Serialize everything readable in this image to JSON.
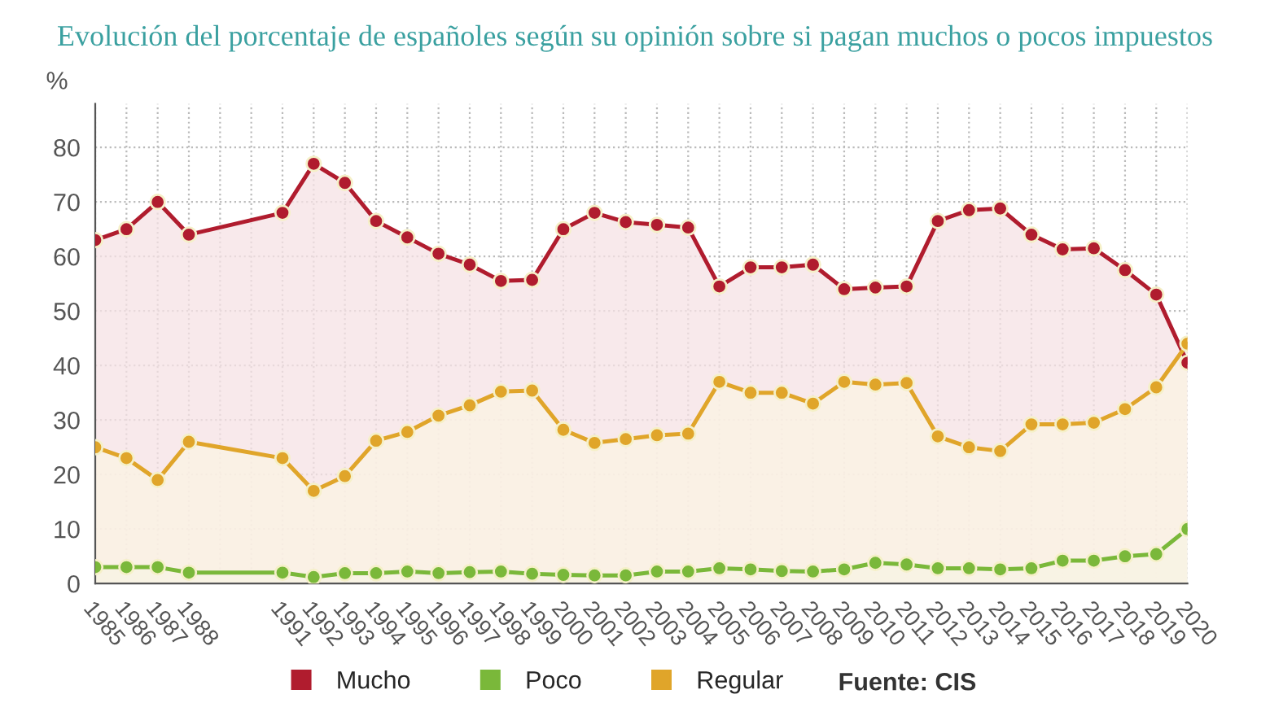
{
  "chart_data": {
    "type": "area",
    "title": "Evolución del porcentaje de españoles según su opinión sobre si pagan muchos o pocos impuestos",
    "ylabel": "%",
    "x": [
      1985,
      1986,
      1987,
      1988,
      1991,
      1992,
      1993,
      1994,
      1995,
      1996,
      1997,
      1998,
      1999,
      2000,
      2001,
      2002,
      2003,
      2004,
      2005,
      2006,
      2007,
      2008,
      2009,
      2010,
      2011,
      2012,
      2013,
      2014,
      2015,
      2016,
      2017,
      2018,
      2019,
      2020
    ],
    "series": [
      {
        "name": "Mucho",
        "color": "#b01c2e",
        "values": [
          63,
          65,
          70,
          64,
          68,
          77,
          73.5,
          66.5,
          63.5,
          60.5,
          58.5,
          55.5,
          55.7,
          65,
          68,
          66.3,
          65.8,
          65.3,
          54.5,
          58,
          58,
          58.5,
          54,
          54.3,
          54.5,
          66.5,
          68.5,
          68.8,
          64,
          61.3,
          61.5,
          57.5,
          53,
          40.5
        ]
      },
      {
        "name": "Poco",
        "color": "#7ab83a",
        "values": [
          3,
          3,
          3,
          2,
          2,
          1.2,
          1.9,
          1.9,
          2.2,
          1.9,
          2.1,
          2.2,
          1.8,
          1.6,
          1.5,
          1.5,
          2.2,
          2.2,
          2.8,
          2.6,
          2.3,
          2.2,
          2.6,
          3.8,
          3.5,
          2.8,
          2.8,
          2.6,
          2.8,
          4.2,
          4.2,
          5,
          5.4,
          10
        ]
      },
      {
        "name": "Regular",
        "color": "#e0a52a",
        "values": [
          25,
          23,
          19,
          26,
          23,
          17,
          19.7,
          26.2,
          27.8,
          30.8,
          32.7,
          35.2,
          35.4,
          28.2,
          25.8,
          26.5,
          27.2,
          27.5,
          37,
          35,
          35,
          33,
          37,
          36.5,
          36.8,
          27,
          25,
          24.3,
          29.2,
          29.2,
          29.5,
          32,
          36,
          44
        ]
      }
    ],
    "xlim": [
      1985,
      2020
    ],
    "xticks": [
      1985,
      1986,
      1987,
      1988,
      {
        "value": 1989,
        "label": null
      },
      {
        "value": 1990,
        "label": null
      },
      1991,
      1992,
      1993,
      1994,
      1995,
      1996,
      1997,
      1998,
      1999,
      2000,
      2001,
      2002,
      2003,
      2004,
      2005,
      2006,
      2007,
      2008,
      2009,
      2010,
      2011,
      2012,
      2013,
      2014,
      2015,
      2016,
      2017,
      2018,
      2019,
      2020
    ],
    "ylim": [
      0,
      88
    ],
    "yticks": [
      0,
      10,
      20,
      30,
      40,
      50,
      60,
      70,
      80
    ],
    "grid": true,
    "legend": "bottom",
    "marker": "circle",
    "line_style": "solid",
    "annotations": [
      "Fuente: CIS"
    ]
  }
}
